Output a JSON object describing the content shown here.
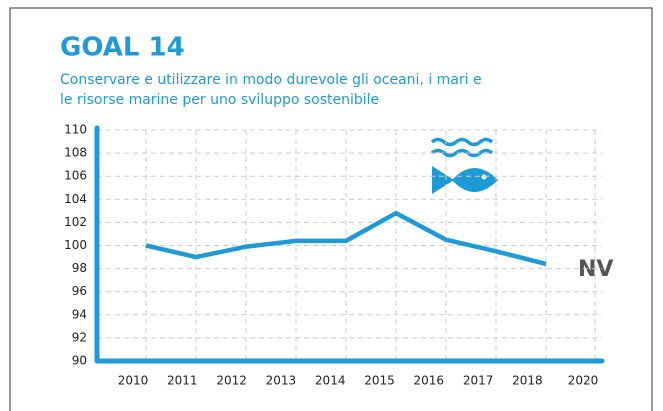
{
  "chart_data": {
    "type": "line",
    "title": "GOAL 14",
    "subtitle": [
      "Conservare e utilizzare in modo durevole gli oceani, i mari e",
      "le risorse marine per uno sviluppo sostenibile"
    ],
    "categories": [
      "2010",
      "2011",
      "2012",
      "2013",
      "2014",
      "2015",
      "2016",
      "2017",
      "2018",
      "2020"
    ],
    "series": [
      {
        "name": "Goal 14",
        "color": "#1e9ad6",
        "values": [
          100,
          99,
          99.9,
          100.4,
          100.4,
          102.8,
          100.5,
          99.5,
          98.4,
          null
        ]
      }
    ],
    "annotation": "NV",
    "ylim": [
      90,
      110
    ],
    "yticks": [
      90,
      92,
      94,
      96,
      98,
      100,
      102,
      104,
      106,
      108,
      110
    ],
    "grid": true
  }
}
